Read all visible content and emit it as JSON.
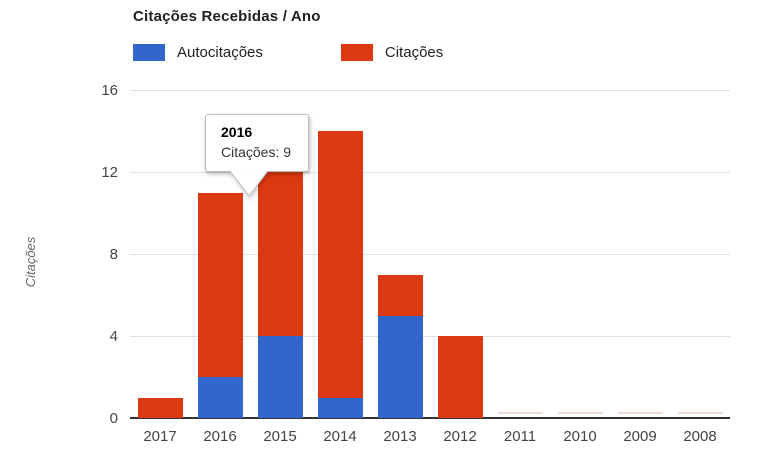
{
  "header": {
    "title": "Citações Recebidas / Ano"
  },
  "legend": {
    "autocitacoes_label": "Autocitações",
    "citacoes_label": "Citações"
  },
  "tooltip": {
    "title": "2016",
    "label": "Citações:",
    "value": "9"
  },
  "colors": {
    "autocitacoes": "#3366cc",
    "citacoes": "#dc3912",
    "gridline": "#e0e0e0",
    "axis_line": "#333333",
    "tick_text": "#444444",
    "zero_bar": "#eedad5"
  },
  "chart_data": {
    "type": "bar",
    "stacked": true,
    "title": "Citações Recebidas / Ano",
    "categories": [
      "2017",
      "2016",
      "2015",
      "2014",
      "2013",
      "2012",
      "2011",
      "2010",
      "2009",
      "2008"
    ],
    "series": [
      {
        "name": "Autocitações",
        "color": "#3366cc",
        "values": [
          0,
          2,
          4,
          1,
          5,
          0,
          0,
          0,
          0,
          0
        ]
      },
      {
        "name": "Citações",
        "color": "#dc3912",
        "values": [
          1,
          9,
          8,
          13,
          2,
          4,
          0,
          0,
          0,
          0
        ]
      }
    ],
    "totals": [
      1,
      11,
      12,
      14,
      7,
      4,
      0,
      0,
      0,
      0
    ],
    "xlabel": "",
    "ylabel": "Citações",
    "yticks": [
      0,
      4,
      8,
      12,
      16
    ],
    "ylim": [
      0,
      16
    ],
    "grid": true,
    "legend_position": "top",
    "tooltip_shown_for": {
      "category": "2016",
      "series": "Citações",
      "value": 9
    }
  }
}
